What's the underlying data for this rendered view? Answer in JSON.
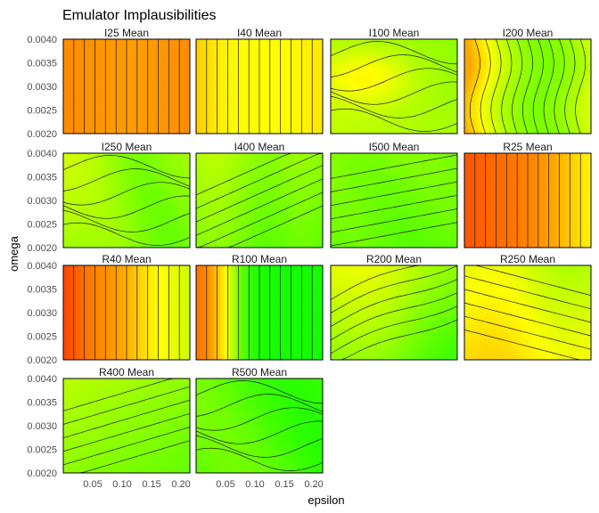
{
  "chart_data": {
    "type": "heatmap",
    "title": "Emulator Implausibilities",
    "xlabel": "epsilon",
    "ylabel": "omega",
    "xlim": [
      0.0,
      0.215
    ],
    "ylim": [
      0.002,
      0.004
    ],
    "x_ticks": [
      0.05,
      0.1,
      0.15,
      0.2
    ],
    "x_tick_labels": [
      "0.05",
      "0.10",
      "0.15",
      "0.20"
    ],
    "y_ticks": [
      0.002,
      0.0025,
      0.003,
      0.0035,
      0.004
    ],
    "y_tick_labels": [
      "0.0020",
      "0.0025",
      "0.0030",
      "0.0035",
      "0.0040"
    ],
    "colors": {
      "low": "#00ff00",
      "mid": "#ffff00",
      "high": "#ff3300",
      "contour": "#1a1a1a"
    },
    "panels": [
      {
        "label": "I25 Mean",
        "pattern": "vertical",
        "values": [
          0.78,
          0.78,
          0.77,
          0.76,
          0.75,
          0.75,
          0.74,
          0.74,
          0.75,
          0.76,
          0.77,
          0.78
        ]
      },
      {
        "label": "I40 Mean",
        "pattern": "vertical",
        "values": [
          0.62,
          0.58,
          0.54,
          0.52,
          0.51,
          0.5,
          0.5,
          0.5,
          0.51,
          0.52,
          0.54,
          0.56
        ]
      },
      {
        "label": "I100 Mean",
        "pattern": "blob",
        "base": 0.38,
        "blob": [
          0.06,
          0.0032,
          0.1
        ],
        "slope": -0.05
      },
      {
        "label": "I200 Mean",
        "pattern": "vertical_wavy",
        "values": [
          0.72,
          0.6,
          0.48,
          0.4,
          0.33,
          0.28,
          0.25,
          0.24,
          0.26,
          0.3,
          0.35,
          0.42
        ]
      },
      {
        "label": "I250 Mean",
        "pattern": "ridge",
        "base": 0.32,
        "center": 0.12,
        "amp": 0.12
      },
      {
        "label": "I400 Mean",
        "pattern": "diagonal",
        "base": 0.26,
        "amp": 0.1
      },
      {
        "label": "I500 Mean",
        "pattern": "diagonal_flat",
        "base": 0.2,
        "amp": 0.06
      },
      {
        "label": "R25 Mean",
        "pattern": "vertical",
        "values": [
          0.92,
          0.9,
          0.88,
          0.86,
          0.84,
          0.82,
          0.79,
          0.75,
          0.7,
          0.64,
          0.58,
          0.52
        ]
      },
      {
        "label": "R40 Mean",
        "pattern": "vertical",
        "values": [
          0.96,
          0.9,
          0.84,
          0.8,
          0.76,
          0.72,
          0.66,
          0.58,
          0.52,
          0.48,
          0.44,
          0.4
        ]
      },
      {
        "label": "R100 Mean",
        "pattern": "vertical",
        "values": [
          0.85,
          0.78,
          0.62,
          0.4,
          0.18,
          0.08,
          0.05,
          0.04,
          0.04,
          0.04,
          0.04,
          0.04
        ]
      },
      {
        "label": "R200 Mean",
        "pattern": "nested",
        "base": 0.28,
        "amp": 0.14
      },
      {
        "label": "R250 Mean",
        "pattern": "bowl",
        "base": 0.45,
        "amp": 0.14
      },
      {
        "label": "R400 Mean",
        "pattern": "diagonal_down",
        "base": 0.28,
        "amp": 0.12
      },
      {
        "label": "R500 Mean",
        "pattern": "swirl",
        "base": 0.18,
        "amp": 0.1
      }
    ]
  }
}
